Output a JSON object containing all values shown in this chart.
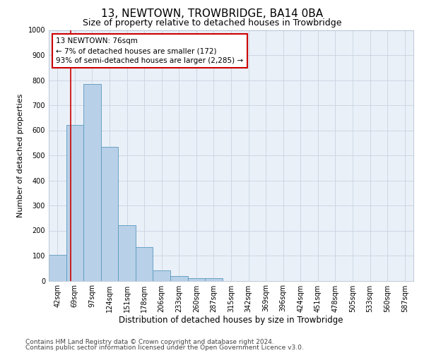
{
  "title": "13, NEWTOWN, TROWBRIDGE, BA14 0BA",
  "subtitle": "Size of property relative to detached houses in Trowbridge",
  "xlabel": "Distribution of detached houses by size in Trowbridge",
  "ylabel": "Number of detached properties",
  "bin_labels": [
    "42sqm",
    "69sqm",
    "97sqm",
    "124sqm",
    "151sqm",
    "178sqm",
    "206sqm",
    "233sqm",
    "260sqm",
    "287sqm",
    "315sqm",
    "342sqm",
    "369sqm",
    "396sqm",
    "424sqm",
    "451sqm",
    "478sqm",
    "505sqm",
    "533sqm",
    "560sqm",
    "587sqm"
  ],
  "bar_values": [
    103,
    622,
    785,
    535,
    222,
    133,
    42,
    18,
    10,
    11,
    0,
    0,
    0,
    0,
    0,
    0,
    0,
    0,
    0,
    0,
    0
  ],
  "bar_color": "#b8d0e8",
  "bar_edge_color": "#5a9abf",
  "highlight_color": "#cc0000",
  "annotation_text": "13 NEWTOWN: 76sqm\n← 7% of detached houses are smaller (172)\n93% of semi-detached houses are larger (2,285) →",
  "annotation_box_color": "#ffffff",
  "annotation_box_edge": "#cc0000",
  "ylim": [
    0,
    1000
  ],
  "yticks": [
    0,
    100,
    200,
    300,
    400,
    500,
    600,
    700,
    800,
    900,
    1000
  ],
  "grid_color": "#c8d4e0",
  "bg_color": "#eaf0f8",
  "footer_line1": "Contains HM Land Registry data © Crown copyright and database right 2024.",
  "footer_line2": "Contains public sector information licensed under the Open Government Licence v3.0.",
  "title_fontsize": 11,
  "subtitle_fontsize": 9,
  "xlabel_fontsize": 8.5,
  "ylabel_fontsize": 8,
  "tick_fontsize": 7,
  "annot_fontsize": 7.5,
  "footer_fontsize": 6.5
}
